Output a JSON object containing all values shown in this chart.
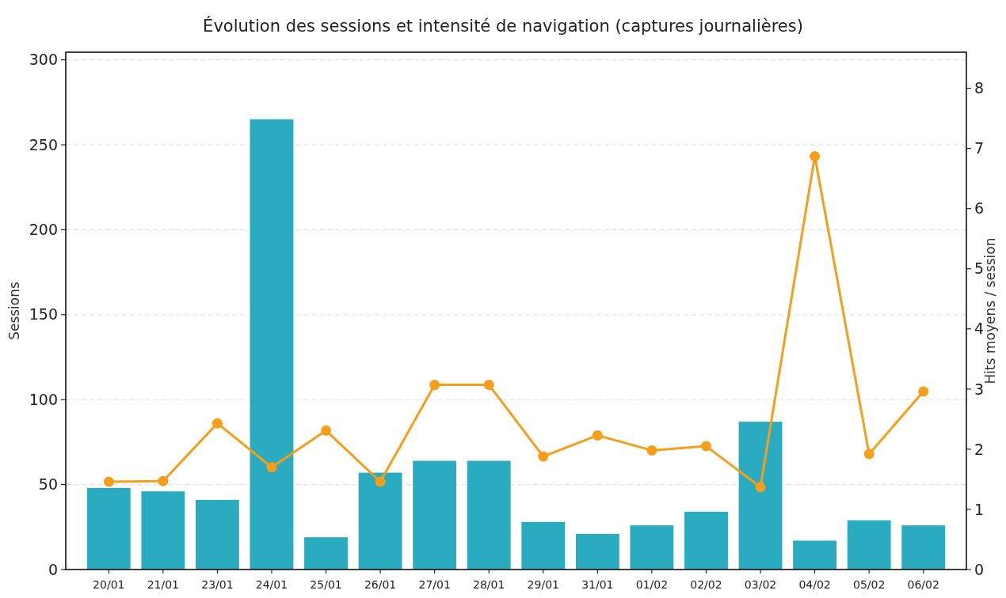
{
  "chart_data": {
    "type": "bar",
    "title": "Évolution des sessions et intensité de navigation (captures journalières)",
    "ylabel": "Sessions",
    "y2label": "Hits moyens / session",
    "categories": [
      "20/01",
      "21/01",
      "23/01",
      "24/01",
      "25/01",
      "26/01",
      "27/01",
      "28/01",
      "29/01",
      "31/01",
      "01/02",
      "02/02",
      "03/02",
      "04/02",
      "05/02",
      "06/02"
    ],
    "series": [
      {
        "color": "#2aabc0",
        "values": [
          48,
          46,
          41,
          265,
          19,
          57,
          64,
          64,
          28,
          21,
          26,
          34,
          87,
          17,
          29,
          26
        ]
      },
      {
        "type": "line",
        "axis": "y2",
        "color": "#f59e1b",
        "values": [
          1.46,
          1.47,
          2.43,
          1.7,
          2.31,
          1.46,
          3.07,
          3.07,
          1.88,
          2.23,
          1.98,
          2.05,
          1.37,
          6.87,
          1.92,
          2.96
        ]
      }
    ],
    "ylim": [
      0,
      304.5
    ],
    "yticks": [
      0,
      50,
      100,
      150,
      200,
      250,
      300
    ],
    "y2lim": [
      0,
      8.6
    ],
    "y2ticks": [
      0,
      1,
      2,
      3,
      4,
      5,
      6,
      7,
      8
    ],
    "grid": "y",
    "marker": "circle",
    "line_style": "solid"
  }
}
